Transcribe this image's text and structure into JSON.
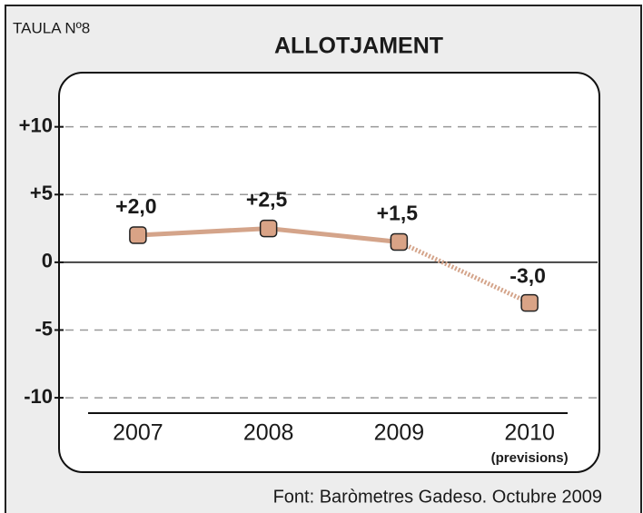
{
  "chart_data": {
    "type": "line",
    "table_label": "TAULA Nº8",
    "title": "ALLOTJAMENT",
    "source": "Font: Baròmetres Gadeso. Octubre 2009",
    "categories": [
      "2007",
      "2008",
      "2009",
      "2010"
    ],
    "forecast": {
      "index": 3,
      "label": "(previsions)"
    },
    "series": [
      {
        "color": "#d4a48a",
        "values": [
          2.0,
          2.5,
          1.5,
          -3.0
        ],
        "value_labels": [
          "+2,0",
          "+2,5",
          "+1,5",
          "-3,0"
        ]
      }
    ],
    "ylim": [
      -11,
      14
    ],
    "yticks": [
      {
        "value": 10,
        "label": "+10"
      },
      {
        "value": 5,
        "label": "+5"
      },
      0,
      -5,
      -10
    ],
    "grid": true
  }
}
